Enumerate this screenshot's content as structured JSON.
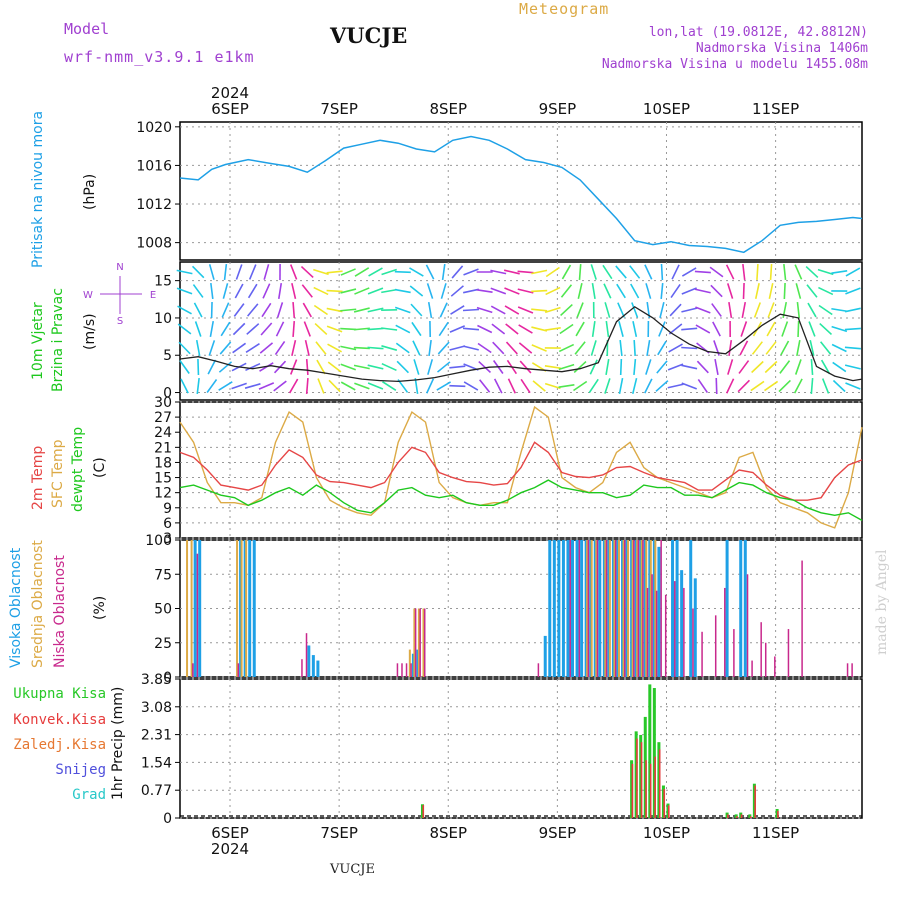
{
  "header": {
    "model_label": "Model",
    "model_name": "wrf-nmm_v3.9.1 e1km",
    "station": "VUCJE",
    "meteogram": "Meteogram",
    "lonlat": "lon,lat (19.0812E, 42.8812N)",
    "elevation": "Nadmorska Visina 1406m",
    "elevation_model": "Nadmorska Visina u modelu 1455.08m",
    "footer_station": "VUCJE",
    "watermark": "made by Angel"
  },
  "colors": {
    "pressure": "#1ea0e6",
    "temp2m": "#e64646",
    "sfc": "#dcaa46",
    "dewpt": "#1ec81e",
    "high": "#1ea0e6",
    "mid": "#dcaa46",
    "low": "#c8288c",
    "rain": "#28c828",
    "conv": "#e63c3c",
    "frozen": "#e67832",
    "snow": "#5050dc",
    "hail": "#28c8c8",
    "title_purple": "#a040d0"
  },
  "axis": {
    "year": "2024",
    "days": [
      "6SEP",
      "7SEP",
      "8SEP",
      "9SEP",
      "10SEP",
      "11SEP"
    ],
    "hours": 150
  },
  "panels": {
    "pressure": {
      "label": "Pritisak na nivou mora",
      "unit": "(hPa)"
    },
    "wind": {
      "label1": "10m Vjetar",
      "label2": "Brzina i Pravac",
      "unit": "(m/s)",
      "compass_n": "N",
      "compass_w": "W",
      "compass_e": "E",
      "compass_s": "S"
    },
    "temp": {
      "label1": "2m Temp",
      "label2": "SFC Temp",
      "label3": "dewpt Temp",
      "unit": "(C)"
    },
    "cloud": {
      "label1": "Visoka Oblacnost",
      "label2": "Srednja Oblacnost",
      "label3": "Niska Oblacnost",
      "unit": "(%)"
    },
    "precip": {
      "legend": [
        "Ukupna Kisa",
        "Konvek.Kisa",
        "Zaledj.Kisa",
        "Snijeg",
        "Grad"
      ],
      "unit": "1hr Precip (mm)"
    }
  },
  "chart_data": [
    {
      "type": "line",
      "title": "Pritisak na nivou mora",
      "ylabel": "(hPa)",
      "ylim": [
        1006.2,
        1020.5
      ],
      "yticks": [
        "1020",
        "1016",
        "1012",
        "1008"
      ],
      "x": [
        0,
        4,
        7,
        10,
        15,
        20,
        24,
        28,
        32,
        36,
        40,
        44,
        48,
        52,
        56,
        60,
        64,
        68,
        72,
        76,
        80,
        84,
        88,
        92,
        96,
        100,
        104,
        108,
        112,
        116,
        120,
        124,
        128,
        132,
        136,
        140,
        144,
        148,
        150
      ],
      "series": [
        {
          "values": [
            1014.7,
            1014.5,
            1015.6,
            1016.1,
            1016.6,
            1016.2,
            1015.9,
            1015.3,
            1016.5,
            1017.8,
            1018.2,
            1018.6,
            1018.3,
            1017.7,
            1017.4,
            1018.6,
            1019.0,
            1018.6,
            1017.7,
            1016.6,
            1016.3,
            1015.8,
            1014.5,
            1012.5,
            1010.5,
            1008.2,
            1007.8,
            1008.1,
            1007.7,
            1007.6,
            1007.4,
            1007.0,
            1008.2,
            1009.8,
            1010.1,
            1010.2,
            1010.4,
            1010.6,
            1010.5
          ]
        }
      ],
      "grid": true
    },
    {
      "type": "line",
      "title": "10m Vjetar Brzina i Pravac",
      "ylabel": "(m/s)",
      "ylim": [
        -1,
        17.5
      ],
      "yticks": [
        "15",
        "10",
        "5",
        "0"
      ],
      "x": [
        0,
        4,
        8,
        12,
        16,
        20,
        24,
        28,
        32,
        36,
        40,
        44,
        48,
        52,
        56,
        60,
        64,
        68,
        72,
        76,
        80,
        84,
        88,
        92,
        96,
        100,
        104,
        108,
        112,
        116,
        120,
        124,
        128,
        132,
        136,
        140,
        144,
        148,
        150
      ],
      "series": [
        {
          "values": [
            4.5,
            4.8,
            4.2,
            3.5,
            3.2,
            3.6,
            3.2,
            3.0,
            2.6,
            2.2,
            1.8,
            1.6,
            1.5,
            1.7,
            2.0,
            2.5,
            3.0,
            3.4,
            3.5,
            3.2,
            3.0,
            2.8,
            3.2,
            4.0,
            9.5,
            11.5,
            10.0,
            8.0,
            6.5,
            5.5,
            5.2,
            7.0,
            9.0,
            10.5,
            10.0,
            3.5,
            2.2,
            1.6,
            1.8
          ]
        }
      ],
      "grid": true
    },
    {
      "type": "line",
      "title": "2m Temp / SFC Temp / dewpt Temp",
      "ylabel": "(C)",
      "ylim": [
        3,
        30
      ],
      "yticks": [
        "30",
        "27",
        "24",
        "21",
        "18",
        "15",
        "12",
        "9",
        "6",
        "3"
      ],
      "x": [
        0,
        3,
        6,
        9,
        12,
        15,
        18,
        21,
        24,
        27,
        30,
        33,
        36,
        39,
        42,
        45,
        48,
        51,
        54,
        57,
        60,
        63,
        66,
        69,
        72,
        75,
        78,
        81,
        84,
        87,
        90,
        93,
        96,
        99,
        102,
        105,
        108,
        111,
        114,
        117,
        120,
        123,
        126,
        129,
        132,
        135,
        138,
        141,
        144,
        147,
        150
      ],
      "series": [
        {
          "name": "2m Temp",
          "values": [
            20,
            19,
            16.5,
            13.5,
            13,
            12.5,
            13.5,
            17.5,
            20.5,
            19,
            15.5,
            14.2,
            14,
            13.5,
            13,
            14,
            18,
            21,
            20,
            16,
            15,
            14.2,
            14,
            13.5,
            13.8,
            17,
            22,
            20,
            16,
            15.2,
            15,
            15.5,
            17,
            17.2,
            16,
            15,
            14.5,
            14,
            12.5,
            12.5,
            14.5,
            16.5,
            16,
            13.5,
            11.5,
            10.5,
            10.5,
            11,
            15,
            17.5,
            18.5
          ]
        },
        {
          "name": "SFC Temp",
          "values": [
            26,
            22,
            14,
            10,
            10,
            9.5,
            11,
            22,
            28,
            26,
            15,
            10.5,
            9,
            8,
            7.5,
            10,
            22,
            28,
            26,
            14,
            11,
            10,
            9.5,
            10,
            10,
            20,
            29,
            27,
            15,
            13,
            12,
            14,
            20,
            22,
            17,
            15,
            14,
            13,
            12,
            11,
            12,
            19,
            20,
            13,
            10,
            9,
            8,
            6,
            5,
            12,
            25
          ]
        },
        {
          "name": "dewpt Temp",
          "values": [
            13,
            13.5,
            12.5,
            11.5,
            11,
            9.5,
            10.5,
            12,
            13,
            11.5,
            13.5,
            12,
            10,
            8.5,
            8,
            10,
            12.5,
            13,
            11.5,
            11,
            11.5,
            10,
            9.5,
            9.5,
            10.5,
            12,
            13,
            14.5,
            13,
            12.5,
            12,
            12,
            11,
            11.5,
            13.5,
            13,
            13,
            11.5,
            11.5,
            11,
            12.5,
            14,
            13.5,
            12,
            11,
            10.5,
            9,
            8,
            7.5,
            8,
            6.5
          ]
        }
      ],
      "grid": true
    },
    {
      "type": "bar",
      "title": "Visoka / Srednja / Niska Oblacnost",
      "ylabel": "(%)",
      "ylim": [
        0,
        100
      ],
      "yticks": [
        "100",
        "75",
        "50",
        "25",
        "0"
      ],
      "series": [
        {
          "name": "Visoka Oblacnost",
          "x": [
            3,
            4,
            13,
            14,
            15,
            16,
            28,
            29,
            30,
            51,
            52,
            80,
            81,
            82,
            83,
            84,
            85,
            86,
            87,
            88,
            89,
            90,
            91,
            92,
            93,
            94,
            95,
            96,
            97,
            98,
            99,
            100,
            101,
            102,
            103,
            104,
            105,
            108,
            109,
            110,
            112,
            113,
            120,
            123,
            124
          ],
          "values": [
            100,
            100,
            100,
            100,
            100,
            100,
            23,
            16,
            12,
            17,
            20,
            30,
            100,
            100,
            100,
            100,
            100,
            100,
            100,
            100,
            100,
            100,
            100,
            100,
            100,
            100,
            100,
            100,
            100,
            100,
            100,
            100,
            100,
            100,
            100,
            100,
            95,
            100,
            100,
            78,
            100,
            72,
            100,
            100,
            100
          ]
        },
        {
          "name": "Srednja Oblacnost",
          "x": [
            1,
            2,
            12,
            13,
            14,
            50,
            51,
            52,
            53,
            89,
            90,
            91,
            93,
            94,
            95,
            96,
            97,
            98,
            99,
            100,
            101,
            102,
            103,
            104
          ],
          "values": [
            100,
            100,
            100,
            100,
            100,
            20,
            50,
            50,
            50,
            100,
            100,
            100,
            100,
            100,
            100,
            100,
            100,
            100,
            100,
            100,
            100,
            100,
            100,
            100
          ]
        },
        {
          "name": "Niska Oblacnost",
          "x": [
            0,
            2,
            3,
            12,
            26,
            27,
            47,
            48,
            49,
            50,
            51,
            52,
            53,
            78,
            85,
            87,
            89,
            91,
            93,
            95,
            97,
            99,
            100,
            101,
            102,
            103,
            104,
            105,
            106,
            108,
            110,
            112,
            114,
            117,
            119,
            121,
            124,
            125,
            127,
            128,
            130,
            133,
            136,
            146,
            147
          ],
          "values": [
            0,
            10,
            90,
            10,
            13,
            32,
            10,
            10,
            10,
            10,
            50,
            50,
            50,
            10,
            100,
            100,
            100,
            100,
            100,
            100,
            100,
            100,
            100,
            100,
            65,
            75,
            63,
            100,
            60,
            70,
            65,
            50,
            33,
            45,
            65,
            35,
            75,
            12,
            40,
            25,
            15,
            35,
            85,
            10,
            10
          ]
        }
      ],
      "grid": true
    },
    {
      "type": "bar",
      "title": "1hr Precip (mm)",
      "ylabel": "1hr Precip (mm)",
      "ylim": [
        0,
        3.85
      ],
      "yticks": [
        "3.85",
        "3.08",
        "2.31",
        "1.54",
        "0.77",
        "0"
      ],
      "series": [
        {
          "name": "Ukupna Kisa",
          "x": [
            53,
            99,
            100,
            101,
            102,
            103,
            104,
            105,
            106,
            107,
            120,
            122,
            123,
            125,
            126,
            131
          ],
          "values": [
            0.38,
            1.6,
            2.4,
            2.3,
            2.8,
            3.7,
            3.6,
            2.1,
            0.9,
            0.4,
            0.15,
            0.1,
            0.15,
            0.1,
            0.95,
            0.25
          ]
        },
        {
          "name": "Konvek.Kisa",
          "x": [
            53,
            99,
            100,
            101,
            102,
            103,
            104,
            105,
            106,
            107,
            120,
            122,
            123,
            125,
            126,
            131
          ],
          "values": [
            0.36,
            1.5,
            2.2,
            2.1,
            1.6,
            1.5,
            1.7,
            1.9,
            0.8,
            0.35,
            0.1,
            0.05,
            0.1,
            0.05,
            0.9,
            0.2
          ]
        }
      ],
      "grid": true
    }
  ]
}
